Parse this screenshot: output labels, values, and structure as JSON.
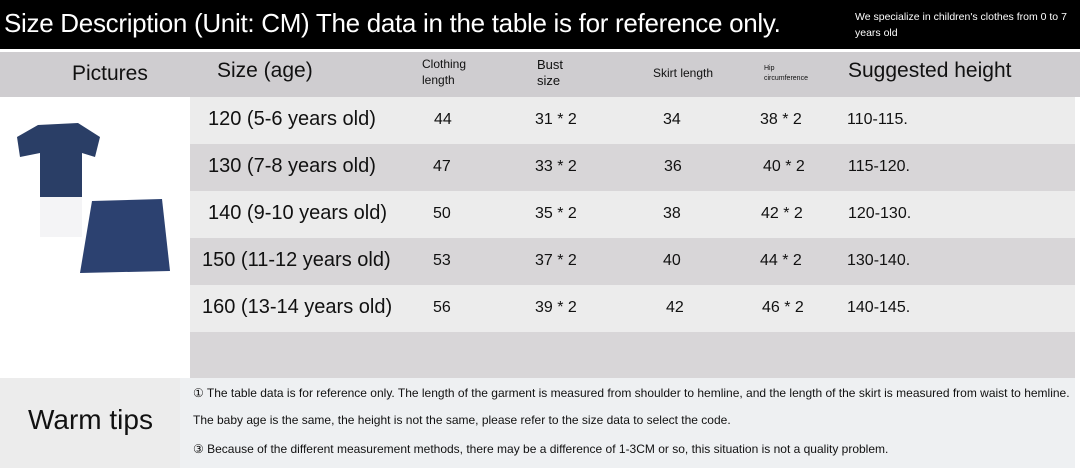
{
  "header": {
    "title": "Size Description (Unit: CM) The data in the table is for reference only.",
    "note": "We specialize in children's clothes from 0 to 7 years old"
  },
  "columns": [
    "Pictures",
    "Size (age)",
    "Clothing length",
    "Bust size",
    "Skirt length",
    "Hip circumference",
    "Suggested height"
  ],
  "rows": [
    {
      "size": "120 (5-6 years old)",
      "clothing": "44",
      "bust": "31 * 2",
      "skirt": "34",
      "hip": "38 * 2",
      "height": "110-115."
    },
    {
      "size": "130 (7-8 years old)",
      "clothing": "47",
      "bust": "33 * 2",
      "skirt": "36",
      "hip": "40 * 2",
      "height": "115-120."
    },
    {
      "size": "140 (9-10 years old)",
      "clothing": "50",
      "bust": "35 * 2",
      "skirt": "38",
      "hip": "42 * 2",
      "height": "120-130."
    },
    {
      "size": "150 (11-12 years old)",
      "clothing": "53",
      "bust": "37 * 2",
      "skirt": "40",
      "hip": "44 * 2",
      "height": "130-140."
    },
    {
      "size": "160 (13-14 years old)",
      "clothing": "56",
      "bust": "39 * 2",
      "skirt": "42",
      "hip": "46 * 2",
      "height": "140-145."
    }
  ],
  "tips": {
    "label": "Warm tips",
    "items": [
      "① The table data is for reference only. The length of the garment is measured from shoulder to hemline, and the length of the skirt is measured from waist to hemline.",
      "The baby age is the same, the height is not the same, please refer to the size data to select the code.",
      "③ Because of the different measurement methods, there may be a difference of 1-3CM or so, this situation is not a quality problem."
    ]
  },
  "colors": {
    "navy": "#2a3e66",
    "header_bg": "#000000"
  }
}
